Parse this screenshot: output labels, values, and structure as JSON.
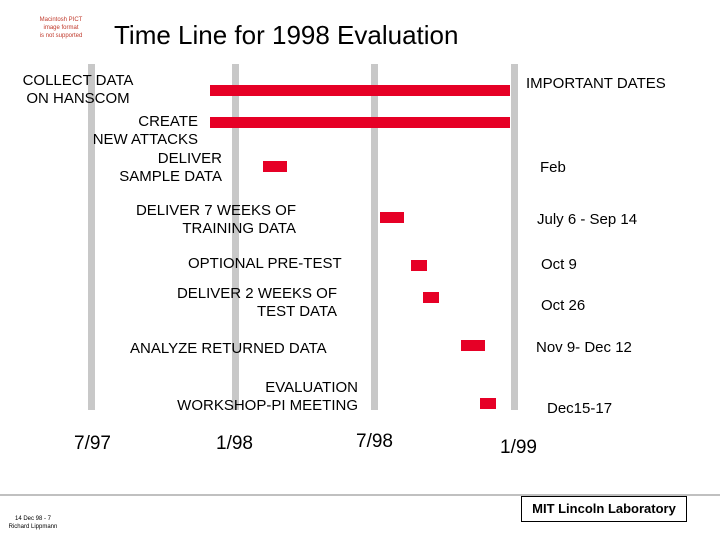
{
  "placeholder": {
    "line1": "Macintosh PICT",
    "line2": "image format",
    "line3": "is not supported"
  },
  "title": "Time Line for 1998 Evaluation",
  "important_dates_header": "IMPORTANT DATES",
  "activities": [
    {
      "line1": "COLLECT DATA",
      "line2": "ON HANSCOM",
      "date": ""
    },
    {
      "line1": "CREATE",
      "line2": "NEW ATTACKS",
      "date": ""
    },
    {
      "line1": "DELIVER",
      "line2": "SAMPLE DATA",
      "date": "Feb"
    },
    {
      "line1": "DELIVER 7 WEEKS OF",
      "line2": "TRAINING DATA",
      "date": "July 6 - Sep 14"
    },
    {
      "line1": "OPTIONAL PRE-TEST",
      "line2": "",
      "date": "Oct 9"
    },
    {
      "line1": "DELIVER 2 WEEKS OF",
      "line2": "TEST DATA",
      "date": "Oct 26"
    },
    {
      "line1": "ANALYZE RETURNED DATA",
      "line2": "",
      "date": "Nov 9- Dec 12"
    },
    {
      "line1": "EVALUATION",
      "line2": "WORKSHOP-PI MEETING",
      "date": "Dec15-17"
    }
  ],
  "timeline_ticks": [
    "7/97",
    "1/98",
    "7/98",
    "1/99"
  ],
  "footer": {
    "brand": "MIT Lincoln Laboratory",
    "small_line1": "14   Dec 98 - 7",
    "small_line2": "Richard Lippmann"
  },
  "colors": {
    "bar": "#e60026",
    "gridline": "#c8c8c8"
  }
}
